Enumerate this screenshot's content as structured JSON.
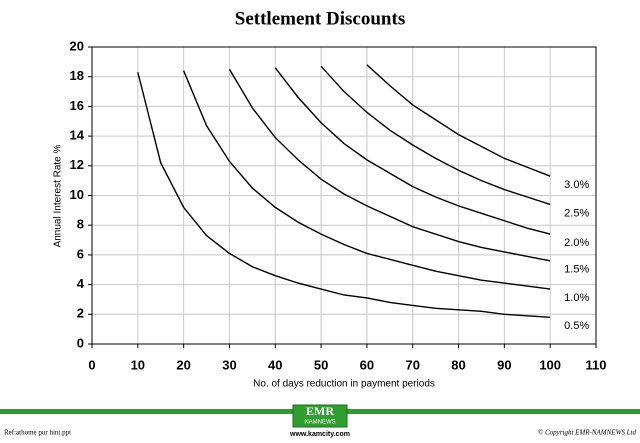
{
  "chart_data": {
    "type": "line",
    "title": "Settlement Discounts",
    "x_label": "No. of days reduction in payment periods",
    "y_label": "Annual Interest Rate %",
    "x": [
      10,
      15,
      20,
      25,
      30,
      35,
      40,
      45,
      50,
      55,
      60,
      65,
      70,
      75,
      80,
      85,
      90,
      95,
      100
    ],
    "series": [
      {
        "name": "0.5%",
        "color": "#000000",
        "values": [
          18.3,
          12.2,
          9.2,
          7.3,
          6.1,
          5.2,
          4.6,
          4.1,
          3.7,
          3.3,
          3.1,
          2.8,
          2.6,
          2.4,
          2.3,
          2.2,
          2.0,
          1.9,
          1.8
        ]
      },
      {
        "name": "1.0%",
        "color": "#000000",
        "values": [
          null,
          null,
          18.4,
          14.7,
          12.3,
          10.5,
          9.2,
          8.2,
          7.4,
          6.7,
          6.1,
          5.7,
          5.3,
          4.9,
          4.6,
          4.3,
          4.1,
          3.9,
          3.7
        ]
      },
      {
        "name": "1.5%",
        "color": "#000000",
        "values": [
          null,
          null,
          null,
          null,
          18.5,
          15.9,
          13.9,
          12.4,
          11.1,
          10.1,
          9.3,
          8.6,
          7.9,
          7.4,
          6.9,
          6.5,
          6.2,
          5.9,
          5.6
        ]
      },
      {
        "name": "2.0%",
        "color": "#000000",
        "values": [
          null,
          null,
          null,
          null,
          null,
          null,
          18.6,
          16.6,
          14.9,
          13.5,
          12.4,
          11.5,
          10.6,
          9.9,
          9.3,
          8.8,
          8.3,
          7.8,
          7.4
        ]
      },
      {
        "name": "2.5%",
        "color": "#000000",
        "values": [
          null,
          null,
          null,
          null,
          null,
          null,
          null,
          null,
          18.7,
          17.0,
          15.6,
          14.4,
          13.4,
          12.5,
          11.7,
          11.0,
          10.4,
          9.9,
          9.4
        ]
      },
      {
        "name": "3.0%",
        "color": "#000000",
        "values": [
          null,
          null,
          null,
          null,
          null,
          null,
          null,
          null,
          null,
          null,
          18.8,
          17.4,
          16.1,
          15.1,
          14.1,
          13.3,
          12.5,
          11.9,
          11.3
        ]
      }
    ],
    "xlim": [
      0,
      110
    ],
    "xticks": [
      0,
      10,
      20,
      30,
      40,
      50,
      60,
      70,
      80,
      90,
      100,
      110
    ],
    "ylim": [
      0,
      20
    ],
    "yticks": [
      0,
      2,
      4,
      6,
      8,
      10,
      12,
      14,
      16,
      18,
      20
    ],
    "grid": true
  },
  "footer": {
    "file": "Ref:athome pur hint.ppt",
    "logo_top": "EMR",
    "logo_bottom": "NAMNEWS",
    "website": "www.kamcity.com",
    "copyright": "© Copyright EMR-NAMNEWS Ltd"
  }
}
